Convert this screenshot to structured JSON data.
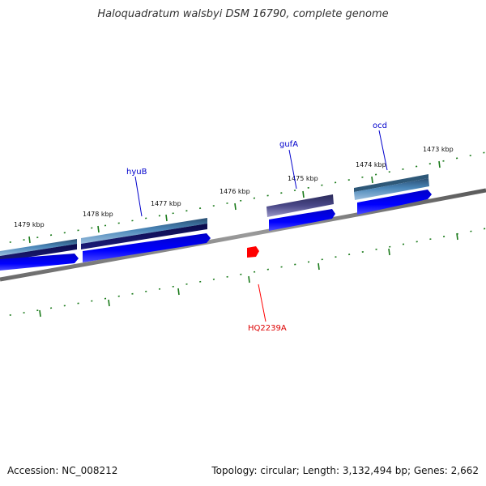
{
  "title": "Haloquadratum walsbyi DSM 16790, complete genome",
  "accession": "Accession: NC_008212",
  "summary": "Topology: circular; Length: 3,132,494 bp; Genes: 2,662",
  "kbp_labels": [
    "1479 kbp",
    "1478 kbp",
    "1477 kbp",
    "1476 kbp",
    "1475 kbp",
    "1474 kbp",
    "1473 kbp"
  ],
  "gene_labels": [
    "hyuB",
    "gufA",
    "ocd"
  ],
  "marker_label": "HQ2239A",
  "colors": {
    "backbone": "#777777",
    "tick": "#1a7a1a",
    "gene_arrow": "#0000ee",
    "gene_label": "#0000cc",
    "marker": "#ff0000"
  }
}
